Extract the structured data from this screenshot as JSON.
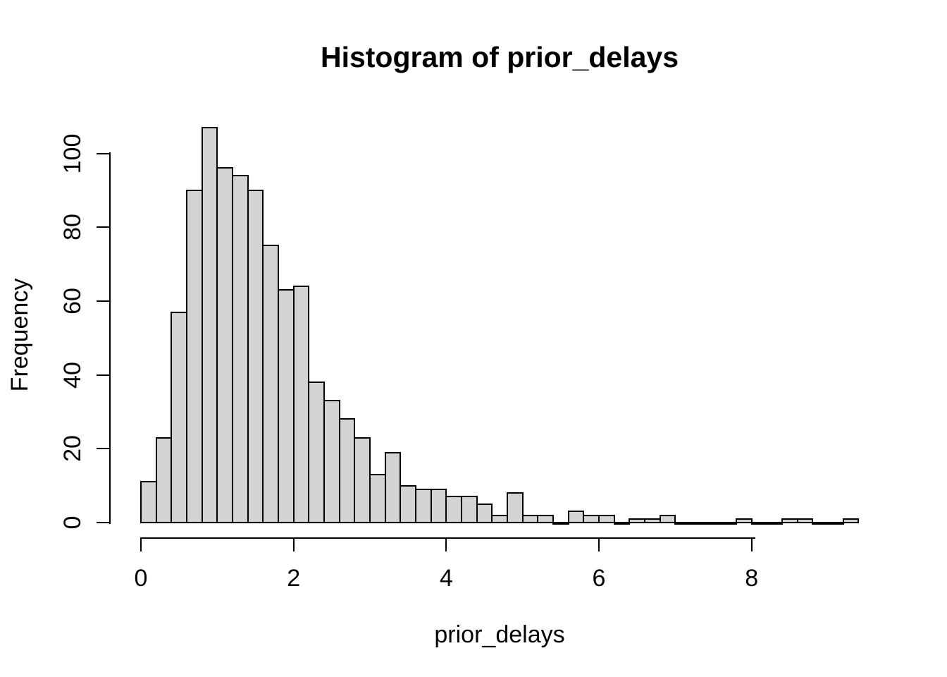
{
  "title": "Histogram of prior_delays",
  "chart_data": {
    "type": "bar",
    "title": "Histogram of prior_delays",
    "xlabel": "prior_delays",
    "ylabel": "Frequency",
    "bin_start": 0,
    "bin_width": 0.2,
    "counts": [
      11,
      23,
      57,
      90,
      107,
      96,
      94,
      90,
      75,
      63,
      64,
      38,
      33,
      28,
      23,
      13,
      19,
      10,
      9,
      9,
      7,
      7,
      5,
      2,
      8,
      2,
      2,
      0,
      3,
      2,
      2,
      0,
      1,
      1,
      2,
      0,
      0,
      0,
      0,
      1,
      0,
      0,
      1,
      1,
      0,
      0,
      1
    ],
    "total_n": 1000,
    "xlim": [
      0,
      9.4
    ],
    "ylim": [
      0,
      107
    ],
    "x_ticks": [
      0,
      2,
      4,
      6,
      8
    ],
    "y_ticks": [
      0,
      20,
      40,
      60,
      80,
      100
    ],
    "grid": false,
    "legend": null,
    "bar_fill": "#D3D3D3",
    "bar_stroke": "#000000",
    "axis_color": "#000000"
  }
}
